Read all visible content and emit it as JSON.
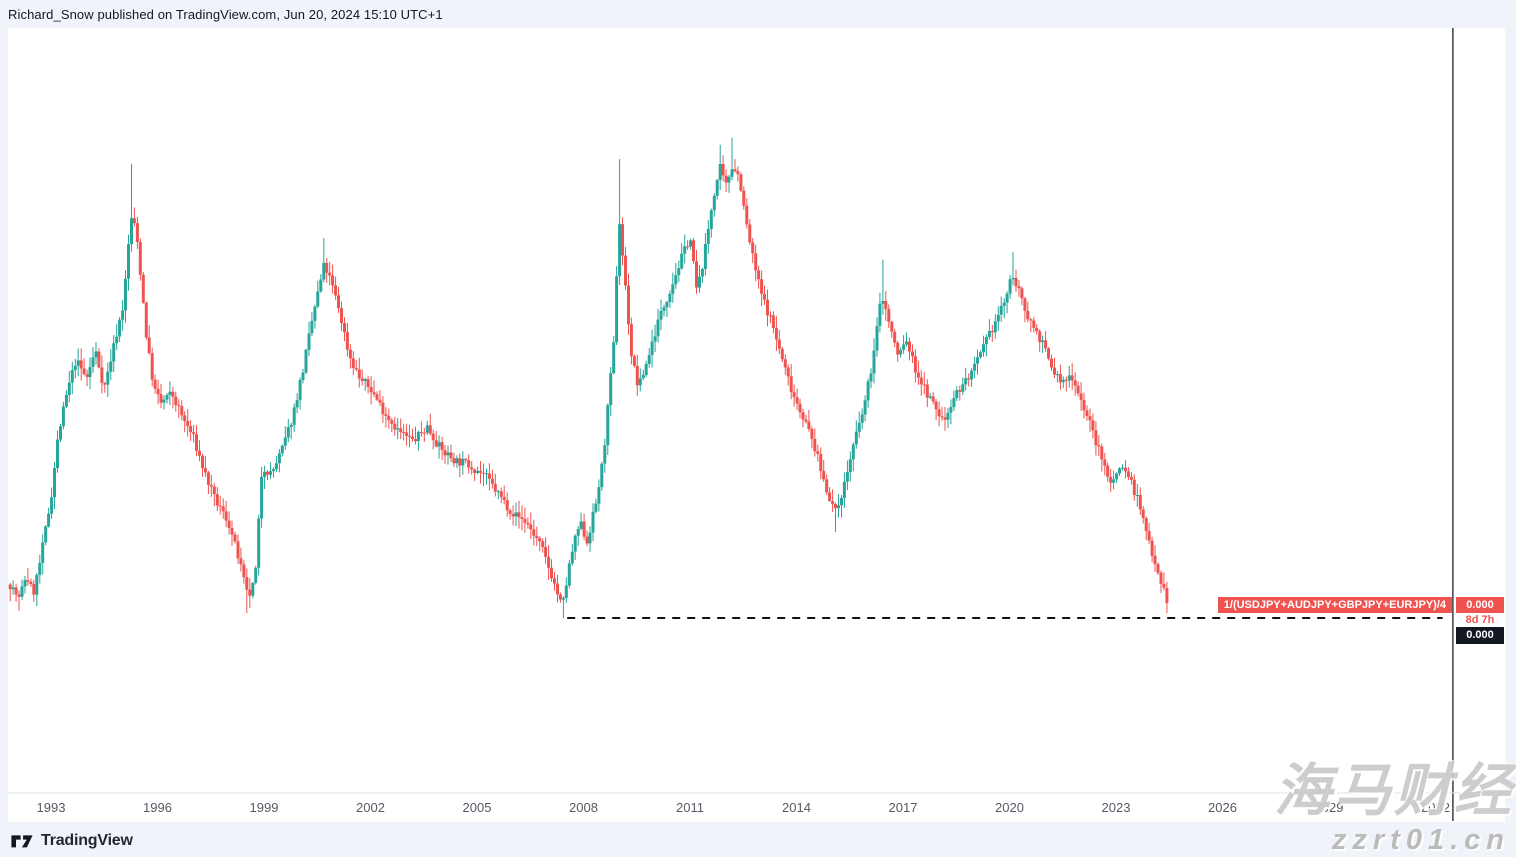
{
  "header": {
    "text": "Richard_Snow published on TradingView.com, Jun 20, 2024 15:10 UTC+1"
  },
  "footer": {
    "brand": "TradingView"
  },
  "watermark": {
    "line1": "海马财经",
    "line2": "zzrt01.cn"
  },
  "price_labels": {
    "symbol_label": "1/(USDJPY+AUDJPY+GBPJPY+EURJPY)/4",
    "value": "0.000",
    "countdown": "8d 7h",
    "alt_value": "0.000"
  },
  "colors": {
    "up": "#26a69a",
    "down": "#ef5350",
    "label_bg": "#ef5350",
    "alt_badge_bg": "#131722",
    "axis_text": "#555a64",
    "axis_line": "#e0e3eb",
    "dashed_line": "#111111",
    "vertical_line": "#3a3e47",
    "pane_bg": "#ffffff",
    "page_bg": "#f0f3fa"
  },
  "chart_data": {
    "type": "candlestick",
    "title": "1/(USDJPY+AUDJPY+GBPJPY+EURJPY)/4",
    "timeframe": "1 month per bar",
    "x_axis": {
      "label": "year",
      "ticks": [
        1993,
        1996,
        1999,
        2002,
        2005,
        2008,
        2011,
        2014,
        2017,
        2020,
        2023,
        2026,
        2029,
        2032
      ],
      "range": [
        1991.8,
        2033.9
      ]
    },
    "y_axis": {
      "visible_labels": false,
      "range": [
        0,
        105
      ],
      "units": "normalized level (displayed price rounds to 0.000)"
    },
    "data_range": {
      "start": 1991.85,
      "end": 2024.45
    },
    "support_line": {
      "style": "dashed",
      "level": 0,
      "from": 2007.54,
      "to": 2032.2
    },
    "vertical_line_at": 2032.49,
    "close_keyframes": [
      [
        1991.85,
        7
      ],
      [
        1992.1,
        4
      ],
      [
        1992.3,
        9
      ],
      [
        1992.5,
        5
      ],
      [
        1992.7,
        12
      ],
      [
        1993.0,
        25
      ],
      [
        1993.2,
        38
      ],
      [
        1993.45,
        47
      ],
      [
        1993.7,
        54
      ],
      [
        1994.0,
        50
      ],
      [
        1994.25,
        56
      ],
      [
        1994.5,
        48
      ],
      [
        1994.8,
        58
      ],
      [
        1995.05,
        66
      ],
      [
        1995.25,
        84
      ],
      [
        1995.4,
        81
      ],
      [
        1995.55,
        70
      ],
      [
        1995.7,
        58
      ],
      [
        1995.9,
        48
      ],
      [
        1996.1,
        45
      ],
      [
        1996.4,
        47
      ],
      [
        1996.7,
        42
      ],
      [
        1997.0,
        38
      ],
      [
        1997.3,
        31
      ],
      [
        1997.6,
        25
      ],
      [
        1998.0,
        20
      ],
      [
        1998.3,
        12
      ],
      [
        1998.55,
        4
      ],
      [
        1998.75,
        8
      ],
      [
        1998.95,
        32
      ],
      [
        1999.2,
        30
      ],
      [
        1999.5,
        35
      ],
      [
        1999.8,
        42
      ],
      [
        2000.1,
        52
      ],
      [
        2000.4,
        64
      ],
      [
        2000.7,
        74
      ],
      [
        2000.9,
        70
      ],
      [
        2001.1,
        65
      ],
      [
        2001.4,
        55
      ],
      [
        2001.7,
        50
      ],
      [
        2002.0,
        48
      ],
      [
        2002.4,
        43
      ],
      [
        2002.8,
        39
      ],
      [
        2003.2,
        37
      ],
      [
        2003.6,
        40
      ],
      [
        2004.0,
        35
      ],
      [
        2004.4,
        33
      ],
      [
        2004.8,
        32
      ],
      [
        2005.2,
        30
      ],
      [
        2005.6,
        26
      ],
      [
        2006.0,
        22
      ],
      [
        2006.4,
        20
      ],
      [
        2006.8,
        15
      ],
      [
        2007.1,
        9
      ],
      [
        2007.4,
        2
      ],
      [
        2007.65,
        13
      ],
      [
        2007.9,
        20
      ],
      [
        2008.1,
        16
      ],
      [
        2008.35,
        24
      ],
      [
        2008.55,
        33
      ],
      [
        2008.7,
        45
      ],
      [
        2008.85,
        57
      ],
      [
        2009.0,
        84
      ],
      [
        2009.15,
        72
      ],
      [
        2009.35,
        55
      ],
      [
        2009.55,
        48
      ],
      [
        2009.8,
        54
      ],
      [
        2010.1,
        62
      ],
      [
        2010.4,
        68
      ],
      [
        2010.7,
        74
      ],
      [
        2011.0,
        80
      ],
      [
        2011.2,
        68
      ],
      [
        2011.45,
        78
      ],
      [
        2011.65,
        88
      ],
      [
        2011.85,
        94
      ],
      [
        2012.0,
        90
      ],
      [
        2012.2,
        95
      ],
      [
        2012.4,
        92
      ],
      [
        2012.55,
        84
      ],
      [
        2012.75,
        76
      ],
      [
        2013.0,
        68
      ],
      [
        2013.3,
        62
      ],
      [
        2013.6,
        54
      ],
      [
        2013.9,
        47
      ],
      [
        2014.2,
        42
      ],
      [
        2014.5,
        36
      ],
      [
        2014.8,
        28
      ],
      [
        2015.1,
        22
      ],
      [
        2015.35,
        28
      ],
      [
        2015.6,
        36
      ],
      [
        2015.9,
        44
      ],
      [
        2016.15,
        54
      ],
      [
        2016.4,
        68
      ],
      [
        2016.6,
        62
      ],
      [
        2016.85,
        55
      ],
      [
        2017.1,
        58
      ],
      [
        2017.35,
        52
      ],
      [
        2017.6,
        48
      ],
      [
        2017.9,
        44
      ],
      [
        2018.15,
        41
      ],
      [
        2018.4,
        46
      ],
      [
        2018.7,
        49
      ],
      [
        2019.0,
        52
      ],
      [
        2019.3,
        57
      ],
      [
        2019.6,
        62
      ],
      [
        2019.9,
        67
      ],
      [
        2020.1,
        72
      ],
      [
        2020.35,
        66
      ],
      [
        2020.6,
        62
      ],
      [
        2020.9,
        58
      ],
      [
        2021.2,
        52
      ],
      [
        2021.5,
        49
      ],
      [
        2021.75,
        51
      ],
      [
        2022.0,
        46
      ],
      [
        2022.3,
        40
      ],
      [
        2022.6,
        33
      ],
      [
        2022.9,
        28
      ],
      [
        2023.1,
        32
      ],
      [
        2023.35,
        30
      ],
      [
        2023.6,
        25
      ],
      [
        2023.85,
        18
      ],
      [
        2024.1,
        12
      ],
      [
        2024.3,
        7
      ],
      [
        2024.45,
        3.5
      ]
    ],
    "wick_highs": [
      [
        1995.25,
        95
      ],
      [
        2009.0,
        96
      ],
      [
        2011.85,
        99
      ],
      [
        2012.2,
        100.5
      ],
      [
        2016.4,
        75
      ],
      [
        2020.1,
        76.5
      ],
      [
        2000.7,
        79.5
      ]
    ],
    "wick_lows": [
      [
        2007.45,
        0
      ],
      [
        1998.55,
        1
      ],
      [
        2024.45,
        1
      ],
      [
        2015.1,
        18
      ],
      [
        1992.1,
        1.5
      ]
    ]
  }
}
